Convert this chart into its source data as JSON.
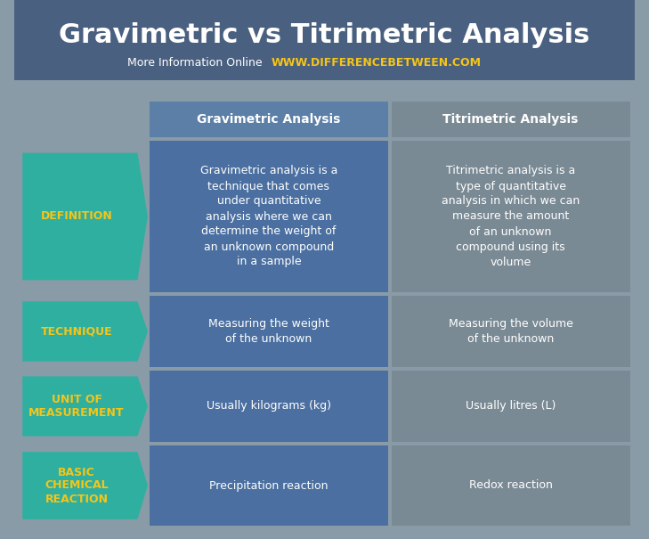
{
  "title": "Gravimetric vs Titrimetric Analysis",
  "subtitle_normal": "More Information Online  ",
  "subtitle_bold": "WWW.DIFFERENCEBETWEEN.COM",
  "bg_color": "#8a9ba8",
  "header_col1": "Gravimetric Analysis",
  "header_col2": "Titrimetric Analysis",
  "header_bg": "#5b7fa6",
  "col1_bg": "#4a6fa0",
  "col2_bg": "#7a8a94",
  "arrow_bg": "#2eafa0",
  "rows": [
    {
      "label": "DEFINITION",
      "col1": "Gravimetric analysis is a\ntechnique that comes\nunder quantitative\nanalysis where we can\ndetermine the weight of\nan unknown compound\nin a sample",
      "col2": "Titrimetric analysis is a\ntype of quantitative\nanalysis in which we can\nmeasure the amount\nof an unknown\ncompound using its\nvolume"
    },
    {
      "label": "TECHNIQUE",
      "col1": "Measuring the weight\nof the unknown",
      "col2": "Measuring the volume\nof the unknown"
    },
    {
      "label": "UNIT OF\nMEASUREMENT",
      "col1": "Usually kilograms (kg)",
      "col2": "Usually litres (L)"
    },
    {
      "label": "BASIC\nCHEMICAL\nREACTION",
      "col1": "Precipitation reaction",
      "col2": "Redox reaction"
    }
  ],
  "title_color": "#ffffff",
  "title_fontsize": 22,
  "subtitle_color_normal": "#ffffff",
  "subtitle_color_bold": "#f5c518",
  "header_text_color": "#ffffff",
  "label_text_color": "#f5c518",
  "cell_text_color": "#ffffff"
}
